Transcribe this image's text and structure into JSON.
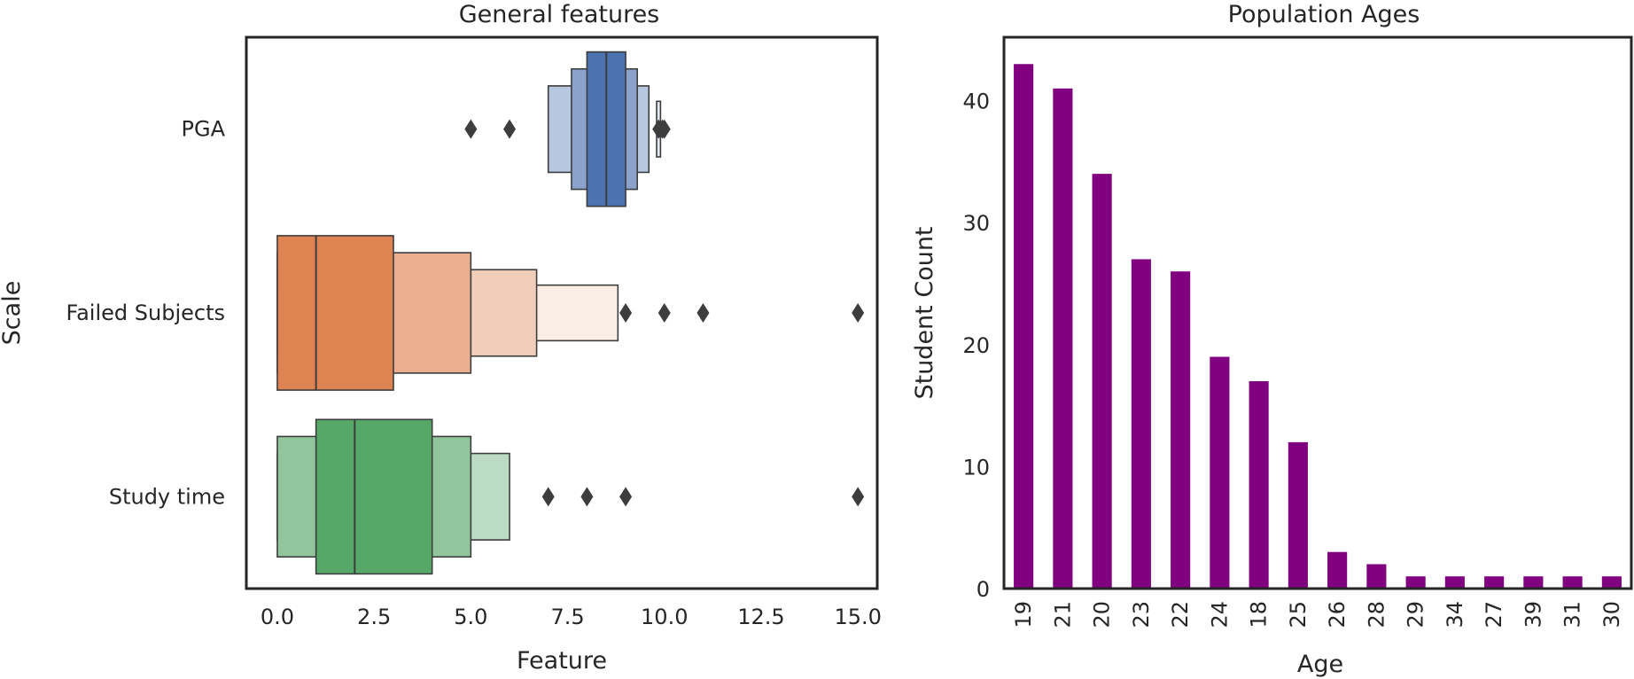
{
  "chart_data": [
    {
      "type": "boxen",
      "title": "General features",
      "xlabel": "Feature",
      "ylabel": "Scale",
      "xlim": [
        -0.8,
        15.5
      ],
      "xticks": [
        "0.0",
        "2.5",
        "5.0",
        "7.5",
        "10.0",
        "12.5",
        "15.0"
      ],
      "xtick_values": [
        0,
        2.5,
        5,
        7.5,
        10,
        12.5,
        15
      ],
      "grid": false,
      "categories": [
        "PGA",
        "Failed Subjects",
        "Study time"
      ],
      "colors": [
        "#4c72b0",
        "#dd8452",
        "#55a868"
      ],
      "series": [
        {
          "name": "PGA",
          "median": 8.5,
          "levels": [
            [
              8.0,
              9.0
            ],
            [
              7.6,
              9.3
            ],
            [
              7.0,
              9.6
            ],
            [
              9.8,
              9.9
            ]
          ],
          "outliers": [
            5,
            6,
            9.85,
            9.95,
            10.0
          ]
        },
        {
          "name": "Failed Subjects",
          "median": 1,
          "levels": [
            [
              0,
              3
            ],
            [
              0,
              5
            ],
            [
              0,
              6.7
            ],
            [
              0,
              8.8
            ]
          ],
          "outliers": [
            9,
            10,
            11,
            15
          ]
        },
        {
          "name": "Study time",
          "median": 2,
          "levels": [
            [
              1,
              4
            ],
            [
              0,
              5
            ],
            [
              0,
              6
            ]
          ],
          "outliers": [
            7,
            8,
            9,
            15
          ]
        }
      ]
    },
    {
      "type": "bar",
      "title": "Population Ages",
      "xlabel": "Age",
      "ylabel": "Student Count",
      "categories": [
        "19",
        "21",
        "20",
        "23",
        "22",
        "24",
        "18",
        "25",
        "26",
        "28",
        "29",
        "34",
        "27",
        "39",
        "31",
        "30"
      ],
      "values": [
        43,
        41,
        34,
        27,
        26,
        19,
        17,
        12,
        3,
        2,
        1,
        1,
        1,
        1,
        1,
        1
      ],
      "ylim": [
        0,
        45.2
      ],
      "yticks": [
        "0",
        "10",
        "20",
        "30",
        "40"
      ],
      "ytick_values": [
        0,
        10,
        20,
        30,
        40
      ],
      "bar_color": "#800080",
      "grid": false
    }
  ]
}
